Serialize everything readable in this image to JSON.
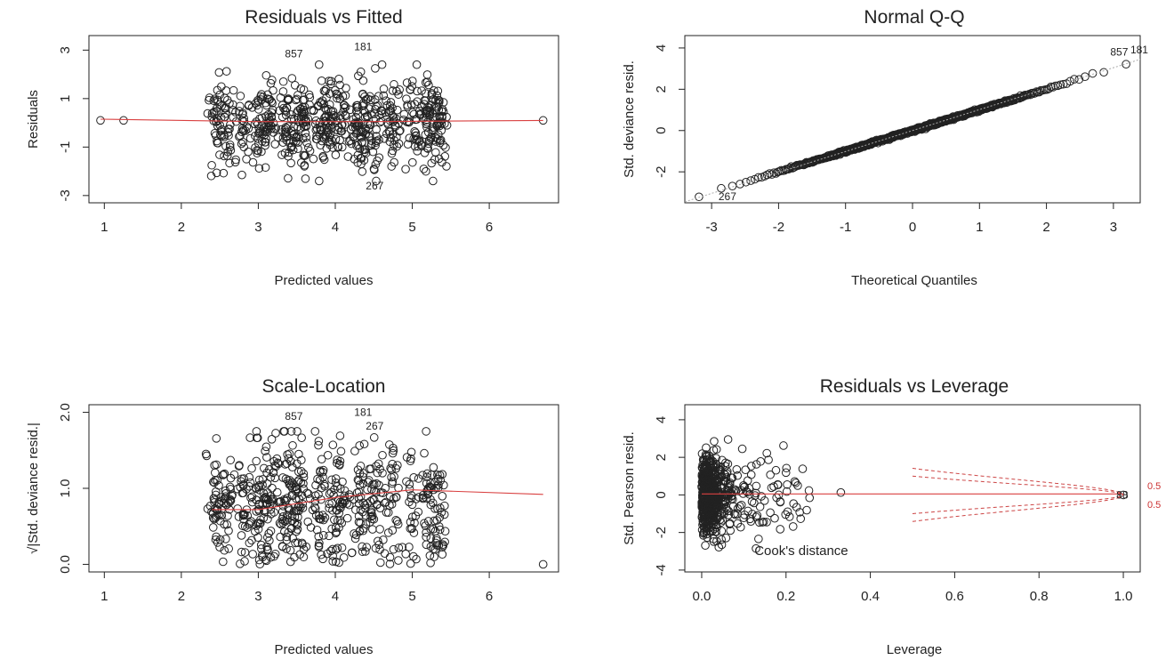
{
  "chart_data": [
    {
      "type": "scatter",
      "title": "Residuals vs Fitted",
      "xlabel": "Predicted values",
      "ylabel": "Residuals",
      "xlim": [
        0.8,
        6.9
      ],
      "ylim": [
        -3.3,
        3.6
      ],
      "xticks": [
        "1",
        "2",
        "3",
        "4",
        "5",
        "6"
      ],
      "yticks": [
        "-3",
        "-1",
        "1",
        "3"
      ],
      "xtick_values": [
        1,
        2,
        3,
        4,
        5,
        6
      ],
      "ytick_values": [
        -3,
        -1,
        1,
        3
      ],
      "point_count": 700,
      "x_clusters": [
        2.45,
        2.6,
        2.8,
        3.0,
        3.15,
        3.35,
        3.5,
        3.6,
        3.8,
        3.95,
        4.1,
        4.3,
        4.4,
        4.55,
        4.75,
        5.0,
        5.2,
        5.35
      ],
      "x_spread": 0.05,
      "y_center": 0,
      "y_sd": 0.9,
      "extra_points": [
        {
          "x": 0.95,
          "y": 0.1
        },
        {
          "x": 1.25,
          "y": 0.1
        },
        {
          "x": 6.7,
          "y": 0.1
        }
      ],
      "identified_points": [
        {
          "label": "857",
          "x": 3.3,
          "y": 2.85
        },
        {
          "label": "181",
          "x": 4.2,
          "y": 3.15
        },
        {
          "label": "267",
          "x": 4.35,
          "y": -2.6
        }
      ],
      "smoother": [
        {
          "x": 0.95,
          "y": 0.15
        },
        {
          "x": 3.0,
          "y": 0.05
        },
        {
          "x": 4.5,
          "y": 0.05
        },
        {
          "x": 6.7,
          "y": 0.1
        }
      ]
    },
    {
      "type": "scatter",
      "title": "Normal Q-Q",
      "xlabel": "Theoretical Quantiles",
      "ylabel": "Std. deviance resid.",
      "xlim": [
        -3.4,
        3.4
      ],
      "ylim": [
        -3.5,
        4.6
      ],
      "xticks": [
        "-3",
        "-2",
        "-1",
        "0",
        "1",
        "2",
        "3"
      ],
      "yticks": [
        "-2",
        "0",
        "2",
        "4"
      ],
      "xtick_values": [
        -3,
        -2,
        -1,
        0,
        1,
        2,
        3
      ],
      "ytick_values": [
        -2,
        0,
        2,
        4
      ],
      "point_count": 700,
      "qq_slope": 1.0,
      "reference_line": [
        {
          "x": -3.4,
          "y": -3.45
        },
        {
          "x": 3.4,
          "y": 3.45
        }
      ],
      "identified_points": [
        {
          "label": "267",
          "x": -2.95,
          "y": -3.2
        },
        {
          "label": "857",
          "x": 2.9,
          "y": 3.8
        },
        {
          "label": "181",
          "x": 3.2,
          "y": 3.9
        }
      ]
    },
    {
      "type": "scatter",
      "title": "Scale-Location",
      "xlabel": "Predicted values",
      "ylabel": "√|Std. deviance resid.|",
      "xlim": [
        0.8,
        6.9
      ],
      "ylim": [
        -0.1,
        2.1
      ],
      "xticks": [
        "1",
        "2",
        "3",
        "4",
        "5",
        "6"
      ],
      "yticks": [
        "0.0",
        "1.0",
        "2.0"
      ],
      "xtick_values": [
        1,
        2,
        3,
        4,
        5,
        6
      ],
      "ytick_values": [
        0.0,
        1.0,
        2.0
      ],
      "point_count": 650,
      "x_clusters": [
        2.45,
        2.6,
        2.8,
        3.0,
        3.15,
        3.35,
        3.5,
        3.6,
        3.8,
        3.95,
        4.1,
        4.3,
        4.4,
        4.55,
        4.75,
        5.0,
        5.2,
        5.35
      ],
      "x_spread": 0.05,
      "y_center": 0.78,
      "y_sd": 0.42,
      "extra_points": [
        {
          "x": 6.7,
          "y": 0.0
        }
      ],
      "identified_points": [
        {
          "label": "857",
          "x": 3.3,
          "y": 1.95
        },
        {
          "label": "181",
          "x": 4.2,
          "y": 2.0
        },
        {
          "label": "267",
          "x": 4.35,
          "y": 1.82
        }
      ],
      "smoother": [
        {
          "x": 2.4,
          "y": 0.72
        },
        {
          "x": 3.0,
          "y": 0.72
        },
        {
          "x": 4.0,
          "y": 0.88
        },
        {
          "x": 5.0,
          "y": 0.98
        },
        {
          "x": 6.7,
          "y": 0.92
        }
      ]
    },
    {
      "type": "scatter",
      "title": "Residuals vs Leverage",
      "xlabel": "Leverage",
      "ylabel": "Std. Pearson resid.",
      "xlim": [
        -0.04,
        1.04
      ],
      "ylim": [
        -4.1,
        4.8
      ],
      "xticks": [
        "0.0",
        "0.2",
        "0.4",
        "0.6",
        "0.8",
        "1.0"
      ],
      "yticks": [
        "-4",
        "-2",
        "0",
        "2",
        "4"
      ],
      "xtick_values": [
        0.0,
        0.2,
        0.4,
        0.6,
        0.8,
        1.0
      ],
      "ytick_values": [
        -4,
        -2,
        0,
        2,
        4
      ],
      "point_count": 620,
      "identified_points": [
        {
          "label": "88",
          "x": 0.975,
          "y": 0.0
        }
      ],
      "extra_points": [
        {
          "x": 1.0,
          "y": 0.0
        }
      ],
      "smoother": [
        {
          "x": 0.0,
          "y": 0.05
        },
        {
          "x": 0.5,
          "y": 0.05
        },
        {
          "x": 1.0,
          "y": 0.05
        }
      ],
      "cooks_annotation": "Cook's distance",
      "cooks_contour_labels": [
        "0.5",
        "0.5"
      ],
      "cooks_levels": [
        0.5,
        1.0
      ]
    }
  ]
}
